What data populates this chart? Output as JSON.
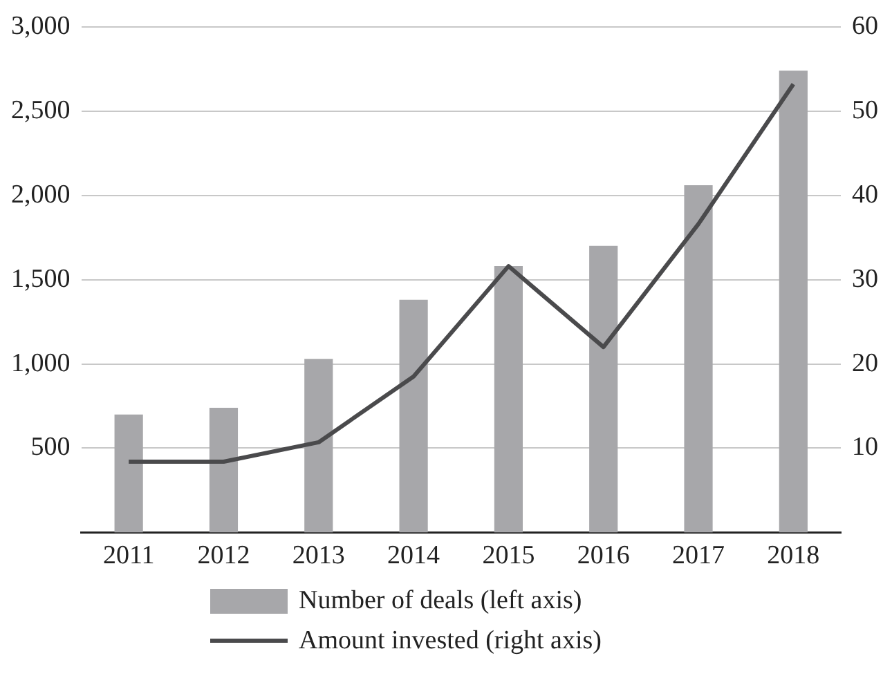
{
  "chart_data": {
    "type": "bar",
    "categories": [
      "2011",
      "2012",
      "2013",
      "2014",
      "2015",
      "2016",
      "2017",
      "2018"
    ],
    "series": [
      {
        "name": "Number of deals (left axis)",
        "color": "#a7a7aa",
        "values": [
          700,
          740,
          1030,
          1380,
          1580,
          1700,
          2060,
          2740
        ]
      },
      {
        "name": "Amount invested (right axis)",
        "type": "line",
        "axis": "y2",
        "color": "#4a4a4c",
        "values": [
          8.4,
          8.4,
          10.7,
          18.5,
          31.6,
          22,
          36.6,
          53.2
        ]
      }
    ],
    "ylim": [
      0,
      3000
    ],
    "yticks": [
      500,
      {
        "value": 1000,
        "label": "1,000"
      },
      {
        "value": 1500,
        "label": "1,500"
      },
      {
        "value": 2000,
        "label": "2,000"
      },
      {
        "value": 2500,
        "label": "2,500"
      },
      {
        "value": 3000,
        "label": "3,000"
      }
    ],
    "y2lim": [
      0,
      60
    ],
    "y2ticks": [
      10,
      20,
      30,
      40,
      50,
      60
    ],
    "grid": "y",
    "legend": "bottom",
    "marker": "none"
  }
}
